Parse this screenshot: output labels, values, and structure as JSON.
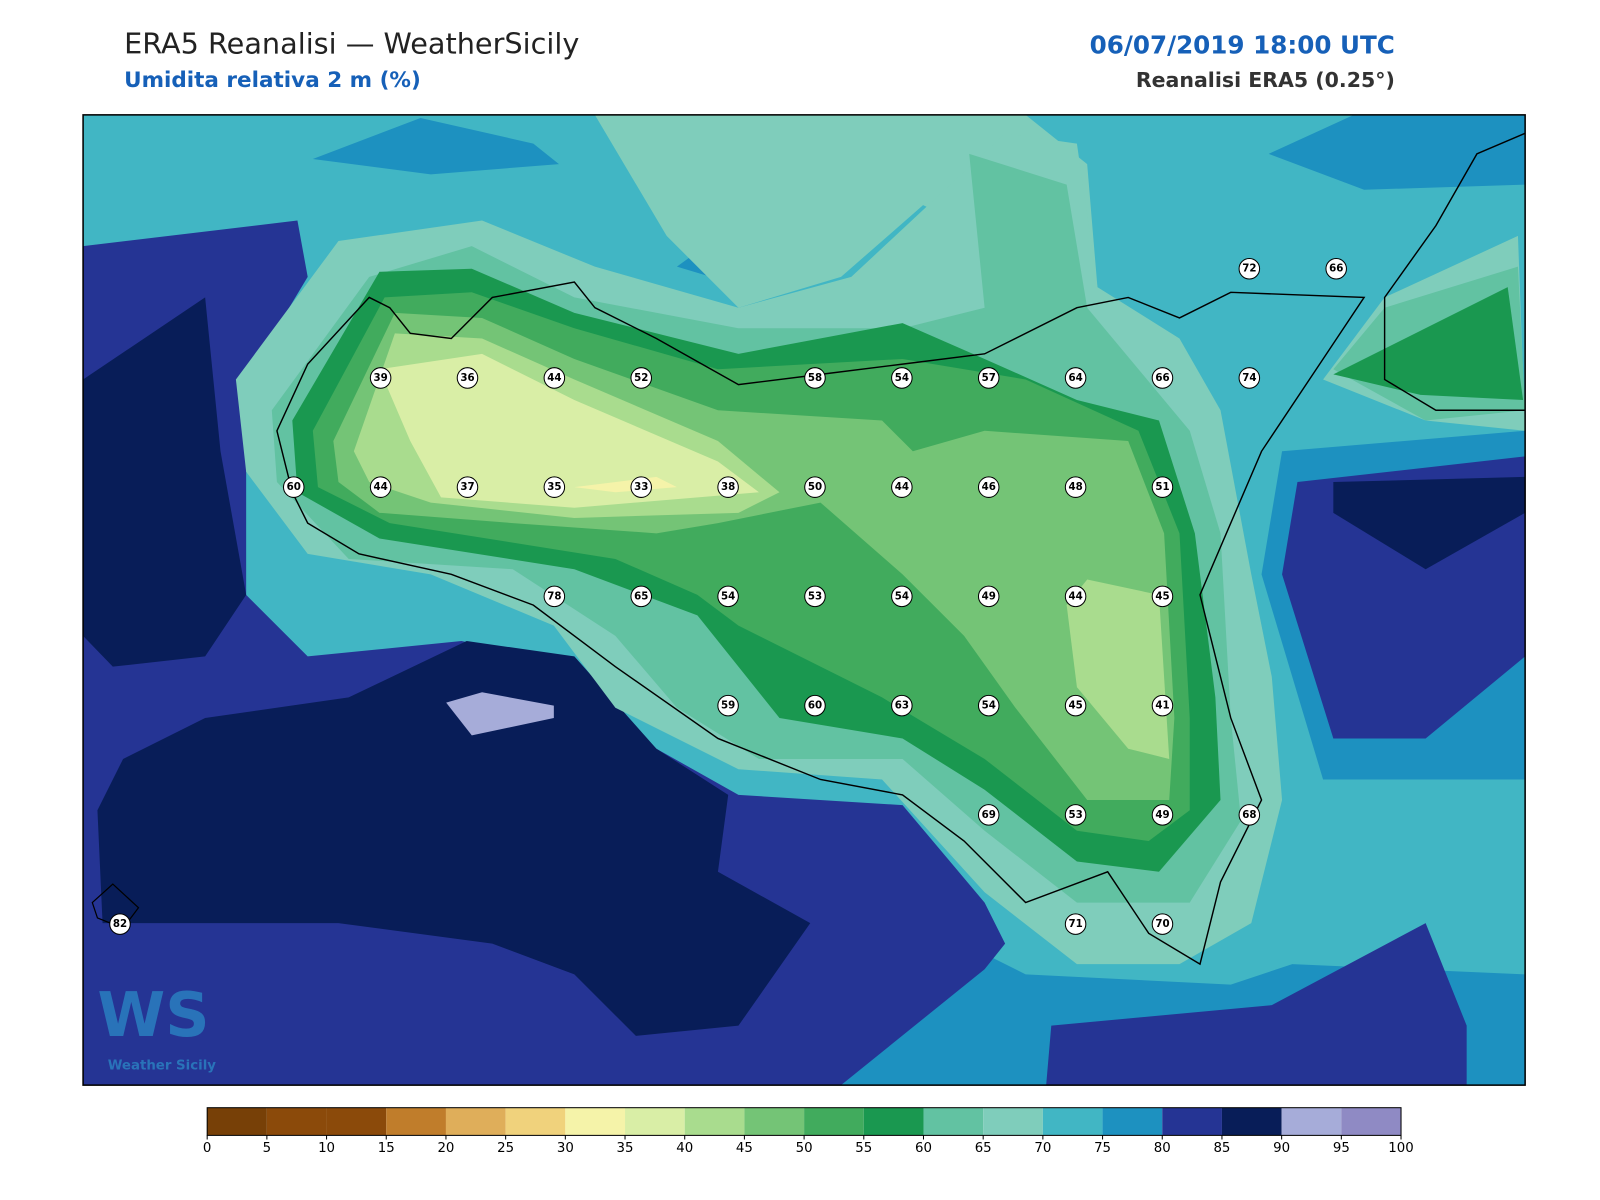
{
  "header": {
    "title": "ERA5 Reanalisi — WeatherSicily",
    "subtitle": "Umidita relativa 2 m (%)",
    "datetime": "06/07/2019 18:00 UTC",
    "source": "Reanalisi ERA5 (0.25°)"
  },
  "logo": {
    "mark": "WS",
    "text": "Weather Sicily"
  },
  "grid": {
    "rows": [
      [
        null,
        null,
        null,
        null,
        null,
        null,
        null,
        null,
        null,
        null,
        null,
        null,
        null,
        72,
        66
      ],
      [
        null,
        null,
        null,
        39,
        36,
        44,
        52,
        null,
        58,
        54,
        57,
        64,
        66,
        74,
        null
      ],
      [
        null,
        null,
        60,
        44,
        37,
        35,
        33,
        38,
        50,
        44,
        46,
        48,
        51,
        null,
        null
      ],
      [
        null,
        null,
        null,
        null,
        null,
        78,
        65,
        54,
        53,
        54,
        49,
        44,
        45,
        null,
        null
      ],
      [
        null,
        null,
        null,
        null,
        null,
        null,
        null,
        59,
        60,
        63,
        54,
        45,
        41,
        null,
        null
      ],
      [
        null,
        null,
        null,
        null,
        null,
        null,
        null,
        null,
        null,
        null,
        69,
        53,
        49,
        68,
        null
      ],
      [
        82,
        null,
        null,
        null,
        null,
        null,
        null,
        null,
        null,
        null,
        null,
        71,
        70,
        null,
        null
      ]
    ]
  },
  "colorbar": {
    "ticks": [
      0,
      5,
      10,
      15,
      20,
      25,
      30,
      35,
      40,
      45,
      50,
      55,
      60,
      65,
      70,
      75,
      80,
      85,
      90,
      95,
      100
    ],
    "colors": [
      "#774007",
      "#8b4a0a",
      "#8b4a0a",
      "#c07d2b",
      "#dfae5a",
      "#f0d27c",
      "#f5f3a9",
      "#d9eea6",
      "#a9dc8e",
      "#74c476",
      "#41ab5d",
      "#1a9850",
      "#62c2a2",
      "#7fcdbb",
      "#41b6c4",
      "#1d91c0",
      "#253494",
      "#081d58",
      "#a6acd9",
      "#8f8ac4"
    ]
  }
}
